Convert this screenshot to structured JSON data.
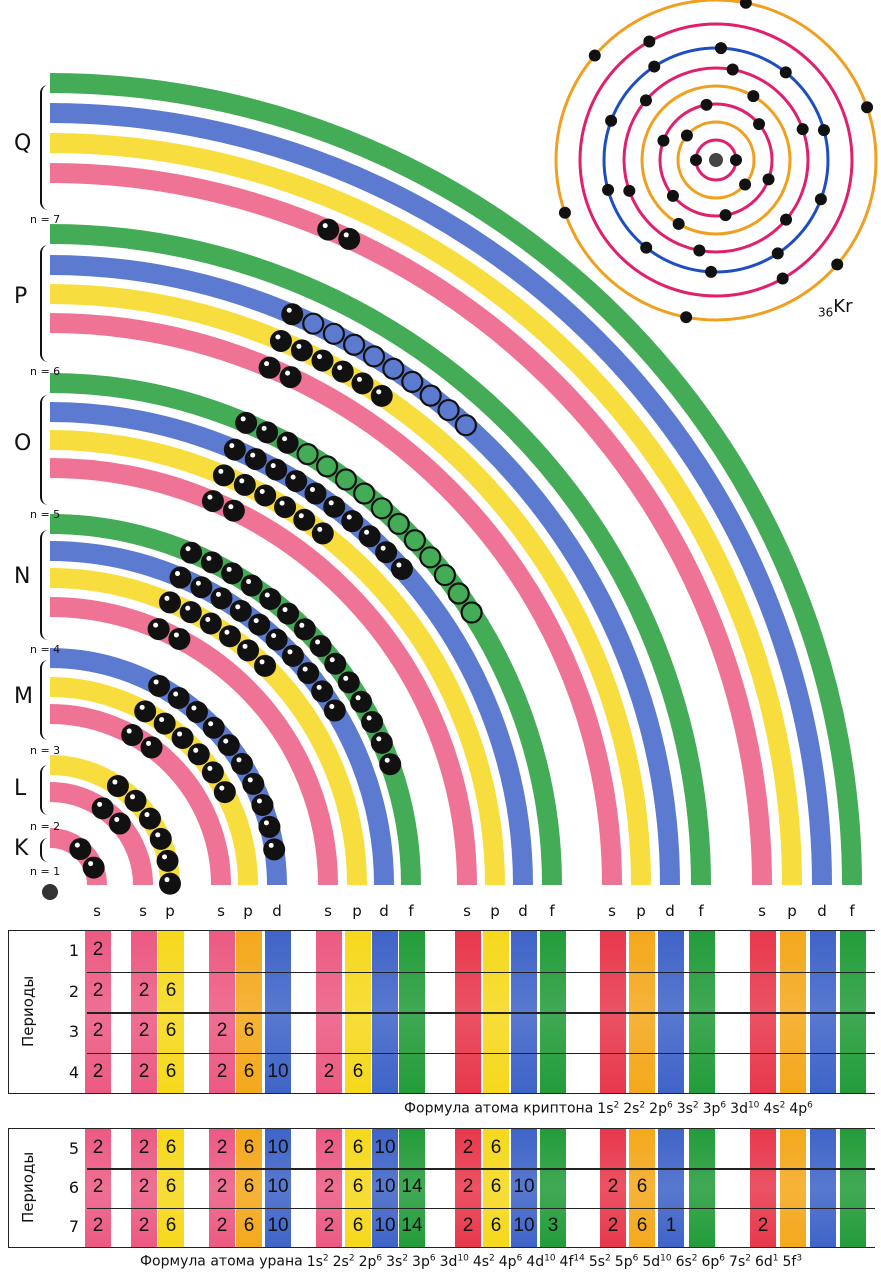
{
  "shells": [
    {
      "name": "K",
      "n_label": "n = 1",
      "subshells": [
        {
          "type": "s",
          "filled": 2,
          "empty": 0
        }
      ]
    },
    {
      "name": "L",
      "n_label": "n = 2",
      "subshells": [
        {
          "type": "s",
          "filled": 2,
          "empty": 0
        },
        {
          "type": "p",
          "filled": 6,
          "empty": 0
        }
      ]
    },
    {
      "name": "M",
      "n_label": "n = 3",
      "subshells": [
        {
          "type": "s",
          "filled": 2,
          "empty": 0
        },
        {
          "type": "p",
          "filled": 6,
          "empty": 0
        },
        {
          "type": "d",
          "filled": 10,
          "empty": 0
        }
      ]
    },
    {
      "name": "N",
      "n_label": "n = 4",
      "subshells": [
        {
          "type": "s",
          "filled": 2,
          "empty": 0
        },
        {
          "type": "p",
          "filled": 6,
          "empty": 0
        },
        {
          "type": "d",
          "filled": 10,
          "empty": 0
        },
        {
          "type": "f",
          "filled": 14,
          "empty": 0
        }
      ]
    },
    {
      "name": "O",
      "n_label": "n = 5",
      "subshells": [
        {
          "type": "s",
          "filled": 2,
          "empty": 0
        },
        {
          "type": "p",
          "filled": 6,
          "empty": 0
        },
        {
          "type": "d",
          "filled": 10,
          "empty": 0
        },
        {
          "type": "f",
          "filled": 3,
          "empty": 11
        }
      ]
    },
    {
      "name": "P",
      "n_label": "n = 6",
      "subshells": [
        {
          "type": "s",
          "filled": 2,
          "empty": 0
        },
        {
          "type": "p",
          "filled": 6,
          "empty": 0
        },
        {
          "type": "d",
          "filled": 1,
          "empty": 9
        },
        {
          "type": "f",
          "filled": 0,
          "empty": 0
        }
      ]
    },
    {
      "name": "Q",
      "n_label": "n = 7",
      "subshells": [
        {
          "type": "s",
          "filled": 2,
          "empty": 0
        },
        {
          "type": "p",
          "filled": 0,
          "empty": 0
        },
        {
          "type": "d",
          "filled": 0,
          "empty": 0
        },
        {
          "type": "f",
          "filled": 0,
          "empty": 0
        }
      ]
    }
  ],
  "colors": {
    "s": "#ec5a82",
    "p": "#f6d81c",
    "d": "#3f64c8",
    "f": "#239c3a",
    "electron": "#111111"
  },
  "krypton_model": {
    "symbol": "Kr",
    "atomic_number": "36",
    "rings": [
      {
        "color": "#e0206e",
        "electrons": 2
      },
      {
        "color": "#f0a020",
        "electrons": 2
      },
      {
        "color": "#e0206e",
        "electrons": 6
      },
      {
        "color": "#f0a020",
        "electrons": 2
      },
      {
        "color": "#e0206e",
        "electrons": 6
      },
      {
        "color": "#1f4ec0",
        "electrons": 10
      },
      {
        "color": "#e0206e",
        "electrons": 2
      },
      {
        "color": "#f0a020",
        "electrons": 6
      }
    ]
  },
  "table_headers": [
    "s",
    "s",
    "p",
    "s",
    "p",
    "d",
    "s",
    "p",
    "d",
    "f",
    "s",
    "p",
    "d",
    "f",
    "s",
    "p",
    "d",
    "f",
    "s",
    "p",
    "d",
    "f"
  ],
  "table1": {
    "axis_label": "Периоды",
    "rows": [
      {
        "period": "1",
        "cells": [
          "2",
          "",
          "",
          "",
          "",
          "",
          "",
          "",
          "",
          "",
          "",
          "",
          "",
          "",
          "",
          "",
          "",
          "",
          "",
          "",
          "",
          ""
        ]
      },
      {
        "period": "2",
        "cells": [
          "2",
          "2",
          "6",
          "",
          "",
          "",
          "",
          "",
          "",
          "",
          "",
          "",
          "",
          "",
          "",
          "",
          "",
          "",
          "",
          "",
          "",
          ""
        ]
      },
      {
        "period": "3",
        "cells": [
          "2",
          "2",
          "6",
          "2",
          "6",
          "",
          "",
          "",
          "",
          "",
          "",
          "",
          "",
          "",
          "",
          "",
          "",
          "",
          "",
          "",
          "",
          ""
        ]
      },
      {
        "period": "4",
        "cells": [
          "2",
          "2",
          "6",
          "2",
          "6",
          "10",
          "2",
          "6",
          "",
          "",
          "",
          "",
          "",
          "",
          "",
          "",
          "",
          "",
          "",
          "",
          "",
          ""
        ]
      }
    ],
    "formula": {
      "label": "Формула атома криптона",
      "terms": [
        {
          "base": "1s",
          "sup": "2"
        },
        {
          "base": "2s",
          "sup": "2"
        },
        {
          "base": "2p",
          "sup": "6"
        },
        {
          "base": "3s",
          "sup": "2"
        },
        {
          "base": "3p",
          "sup": "6"
        },
        {
          "base": "3d",
          "sup": "10"
        },
        {
          "base": "4s",
          "sup": "2"
        },
        {
          "base": "4p",
          "sup": "6"
        }
      ]
    }
  },
  "table2": {
    "axis_label": "Периоды",
    "rows": [
      {
        "period": "5",
        "cells": [
          "2",
          "2",
          "6",
          "2",
          "6",
          "10",
          "2",
          "6",
          "10",
          "",
          "2",
          "6",
          "",
          "",
          "",
          "",
          "",
          "",
          "",
          "",
          "",
          ""
        ]
      },
      {
        "period": "6",
        "cells": [
          "2",
          "2",
          "6",
          "2",
          "6",
          "10",
          "2",
          "6",
          "10",
          "14",
          "2",
          "6",
          "10",
          "",
          "2",
          "6",
          "",
          "",
          "",
          "",
          "",
          ""
        ]
      },
      {
        "period": "7",
        "cells": [
          "2",
          "2",
          "6",
          "2",
          "6",
          "10",
          "2",
          "6",
          "10",
          "14",
          "2",
          "6",
          "10",
          "3",
          "2",
          "6",
          "1",
          "",
          "2",
          "",
          "",
          ""
        ]
      }
    ],
    "formula": {
      "label": "Формула атома урана",
      "terms": [
        {
          "base": "1s",
          "sup": "2"
        },
        {
          "base": "2s",
          "sup": "2"
        },
        {
          "base": "2p",
          "sup": "6"
        },
        {
          "base": "3s",
          "sup": "2"
        },
        {
          "base": "3p",
          "sup": "6"
        },
        {
          "base": "3d",
          "sup": "10"
        },
        {
          "base": "4s",
          "sup": "2"
        },
        {
          "base": "4p",
          "sup": "6"
        },
        {
          "base": "4d",
          "sup": "10"
        },
        {
          "base": "4f",
          "sup": "14"
        },
        {
          "base": "5s",
          "sup": "2"
        },
        {
          "base": "5p",
          "sup": "6"
        },
        {
          "base": "5d",
          "sup": "10"
        },
        {
          "base": "6s",
          "sup": "2"
        },
        {
          "base": "6p",
          "sup": "6"
        },
        {
          "base": "7s",
          "sup": "2"
        },
        {
          "base": "6d",
          "sup": "1"
        },
        {
          "base": "5f",
          "sup": "3"
        }
      ]
    }
  }
}
